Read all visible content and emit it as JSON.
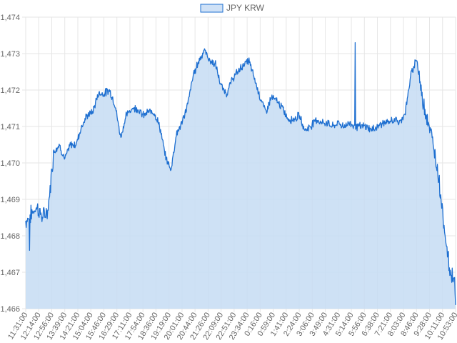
{
  "chart_data": {
    "type": "area",
    "legend": {
      "position": "top",
      "entries": [
        "JPY KRW"
      ]
    },
    "colors": {
      "line": "#1e6fd0",
      "fill": "#c6dcf3",
      "legend_fill": "#cfe1f6",
      "grid": "#e6e6e6"
    },
    "grid": true,
    "ylim": [
      1466,
      1474
    ],
    "yticks": [
      1466,
      1467,
      1468,
      1469,
      1470,
      1471,
      1472,
      1473,
      1474
    ],
    "ytick_labels": [
      "1,466",
      "1,467",
      "1,468",
      "1,469",
      "1,470",
      "1,471",
      "1,472",
      "1,473",
      "1,474"
    ],
    "xtick_labels": [
      "11:31:00",
      "12:14:00",
      "12:56:00",
      "13:39:00",
      "14:21:00",
      "15:04:00",
      "15:46:00",
      "16:29:00",
      "17:11:00",
      "17:54:00",
      "18:36:00",
      "19:19:00",
      "20:01:00",
      "20:44:00",
      "21:26:00",
      "22:09:00",
      "22:51:00",
      "23:34:00",
      "0:16:00",
      "0:59:00",
      "1:41:00",
      "2:24:00",
      "3:06:00",
      "3:49:00",
      "4:31:00",
      "5:14:00",
      "5:56:00",
      "6:38:00",
      "7:21:00",
      "8:03:00",
      "8:46:00",
      "9:28:00",
      "10:11:00",
      "10:53:00"
    ],
    "series": [
      {
        "name": "JPY KRW",
        "values": [
          1468.4,
          1468.6,
          1468.8,
          1468.5,
          1468.7,
          1470.3,
          1470.5,
          1470.1,
          1470.5,
          1470.5,
          1471.0,
          1471.3,
          1471.4,
          1471.9,
          1471.9,
          1472.0,
          1471.6,
          1470.7,
          1471.3,
          1471.5,
          1471.5,
          1471.3,
          1471.4,
          1471.4,
          1471.0,
          1470.2,
          1469.8,
          1470.8,
          1471.1,
          1471.6,
          1472.4,
          1472.8,
          1473.1,
          1472.8,
          1472.7,
          1472.1,
          1471.9,
          1472.3,
          1472.5,
          1472.7,
          1472.8,
          1472.3,
          1471.8,
          1471.4,
          1471.8,
          1471.7,
          1471.5,
          1471.2,
          1471.2,
          1471.3,
          1470.9,
          1471.0,
          1471.2,
          1471.1,
          1471.1,
          1471.0,
          1471.1,
          1471.0,
          1471.1,
          1471.0,
          1471.0,
          1471.0,
          1470.9,
          1471.0,
          1471.1,
          1471.1,
          1471.2,
          1471.1,
          1471.4,
          1472.4,
          1472.9,
          1471.8,
          1471.2,
          1470.5,
          1469.6,
          1468.2,
          1467.0,
          1466.8
        ],
        "extremes": {
          "first_low": 1467.6,
          "high": 1473.3,
          "final": 1466.1
        }
      }
    ]
  }
}
